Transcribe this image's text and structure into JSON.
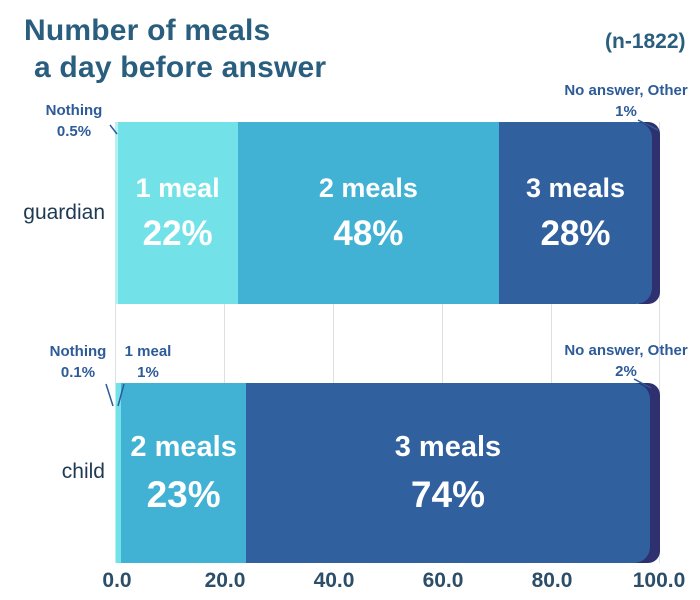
{
  "header": {
    "title_line1": "Number of meals",
    "title_line2": "a day before answer",
    "sample_size": "(n-1822)"
  },
  "colors": {
    "title_text": "#295e7e",
    "annotation_text": "#2d5b98",
    "category_label_text": "#1e3a52",
    "tick_label_text": "#2c4e68",
    "gridline": "#dcdfe4",
    "bar_text": "#ffffff",
    "nothing": "#b7f0f3",
    "one_meal": "#73e2e8",
    "two_meals": "#41b1d4",
    "three_meals": "#30609e",
    "no_answer": "#2e3070"
  },
  "chart_data": {
    "type": "bar",
    "orientation": "horizontal",
    "stacked": true,
    "title": "Number of meals a day before answer",
    "sample_note": "(n-1822)",
    "categories": [
      "guardian",
      "child"
    ],
    "series": [
      {
        "name": "Nothing",
        "values": [
          0.5,
          0.1
        ]
      },
      {
        "name": "1 meal",
        "values": [
          22,
          1
        ]
      },
      {
        "name": "2 meals",
        "values": [
          48,
          23
        ]
      },
      {
        "name": "3 meals",
        "values": [
          28,
          74
        ]
      },
      {
        "name": "No answer, Other",
        "values": [
          1,
          2
        ]
      }
    ],
    "x_ticks": [
      "0.0",
      "20.0",
      "40.0",
      "60.0",
      "80.0",
      "100.0"
    ],
    "xlim": [
      0,
      100
    ],
    "grid": true,
    "legend": "none"
  },
  "bar_labels": {
    "guardian": {
      "one_meal": [
        "1 meal",
        "22%"
      ],
      "two_meals": [
        "2 meals",
        "48%"
      ],
      "three_meals": [
        "3 meals",
        "28%"
      ]
    },
    "child": {
      "two_meals": [
        "2 meals",
        "23%"
      ],
      "three_meals": [
        "3 meals",
        "74%"
      ]
    }
  },
  "annotations": {
    "guardian_nothing": [
      "Nothing",
      "0.5%"
    ],
    "guardian_no_answer": [
      "No answer, Other",
      "1%"
    ],
    "child_nothing": [
      "Nothing",
      "0.1%"
    ],
    "child_one_meal": [
      "1 meal",
      "1%"
    ],
    "child_no_answer": [
      "No answer, Other",
      "2%"
    ]
  }
}
